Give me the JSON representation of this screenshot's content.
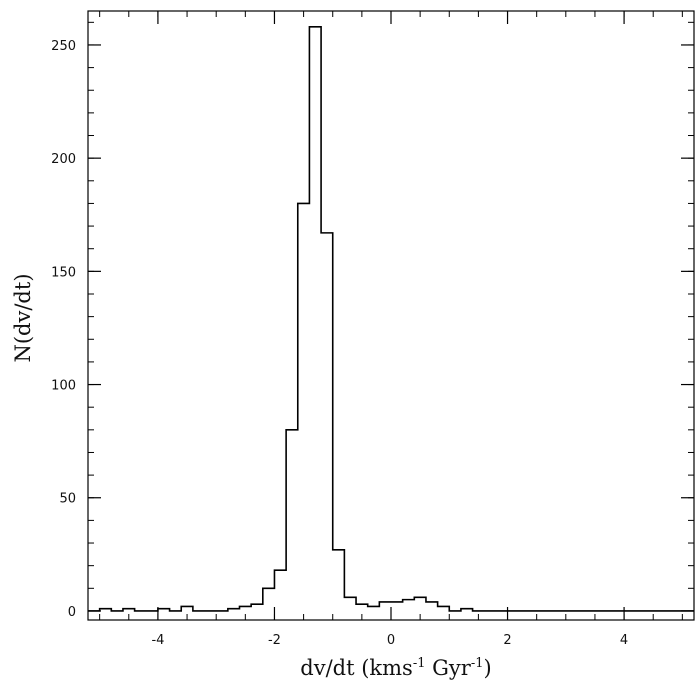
{
  "chart_data": {
    "type": "histogram",
    "title": "",
    "xlabel": {
      "main": "dv/dt (kms",
      "sup1": "-1",
      "mid": " Gyr",
      "sup2": "-1",
      "end": ")"
    },
    "ylabel": "N(dv/dt)",
    "xlim": [
      -5.2,
      5.2
    ],
    "ylim": [
      -4,
      265
    ],
    "xticks": [
      -4,
      -2,
      0,
      2,
      4
    ],
    "yticks": [
      0,
      50,
      100,
      150,
      200,
      250
    ],
    "bin_width": 0.2,
    "bin_edges_start": -5.2,
    "counts": [
      0,
      1,
      0,
      1,
      0,
      0,
      1,
      0,
      2,
      0,
      0,
      0,
      1,
      2,
      3,
      10,
      18,
      80,
      180,
      258,
      167,
      27,
      6,
      3,
      2,
      4,
      4,
      5,
      6,
      4,
      2,
      0,
      1,
      0,
      0,
      0,
      0,
      0,
      0,
      0,
      0,
      0,
      0,
      0,
      0,
      0,
      0,
      0,
      0,
      0,
      0,
      0
    ],
    "grid": false,
    "line_color": "#000000"
  }
}
